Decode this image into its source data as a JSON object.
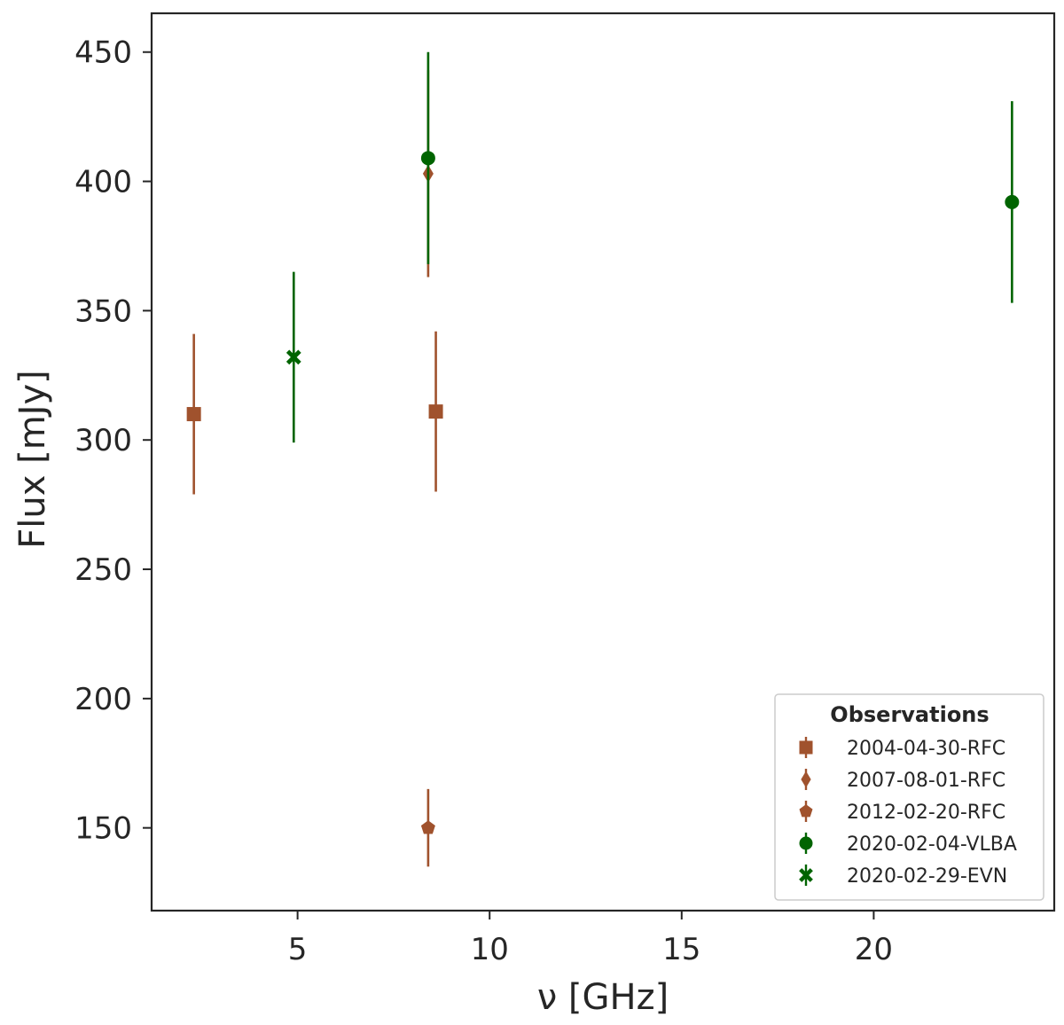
{
  "chart_data": {
    "type": "scatter",
    "xlabel": "ν [GHz]",
    "ylabel": "Flux [mJy]",
    "xlim": [
      1.2,
      24.7
    ],
    "ylim": [
      118,
      465
    ],
    "xticks": [
      5,
      10,
      15,
      20
    ],
    "yticks": [
      150,
      200,
      250,
      300,
      350,
      400,
      450
    ],
    "grid": false,
    "legend": {
      "title": "Observations",
      "placement": "bottom-right"
    },
    "series": [
      {
        "name": "2004-04-30-RFC",
        "marker": "square",
        "color": "#a0522d",
        "points": [
          {
            "x": 2.3,
            "y": 310,
            "yerr": 31
          },
          {
            "x": 8.6,
            "y": 311,
            "yerr": 31
          }
        ]
      },
      {
        "name": "2007-08-01-RFC",
        "marker": "diamond",
        "color": "#a0522d",
        "points": [
          {
            "x": 8.4,
            "y": 403,
            "yerr": 40
          }
        ]
      },
      {
        "name": "2012-02-20-RFC",
        "marker": "pentagon",
        "color": "#a0522d",
        "points": [
          {
            "x": 8.4,
            "y": 150,
            "yerr": 15
          }
        ]
      },
      {
        "name": "2020-02-04-VLBA",
        "marker": "circle",
        "color": "#006400",
        "points": [
          {
            "x": 8.4,
            "y": 409,
            "yerr": 41
          },
          {
            "x": 23.6,
            "y": 392,
            "yerr": 39
          }
        ]
      },
      {
        "name": "2020-02-29-EVN",
        "marker": "x-filled",
        "color": "#006400",
        "points": [
          {
            "x": 4.9,
            "y": 332,
            "yerr": 33
          }
        ]
      }
    ]
  }
}
